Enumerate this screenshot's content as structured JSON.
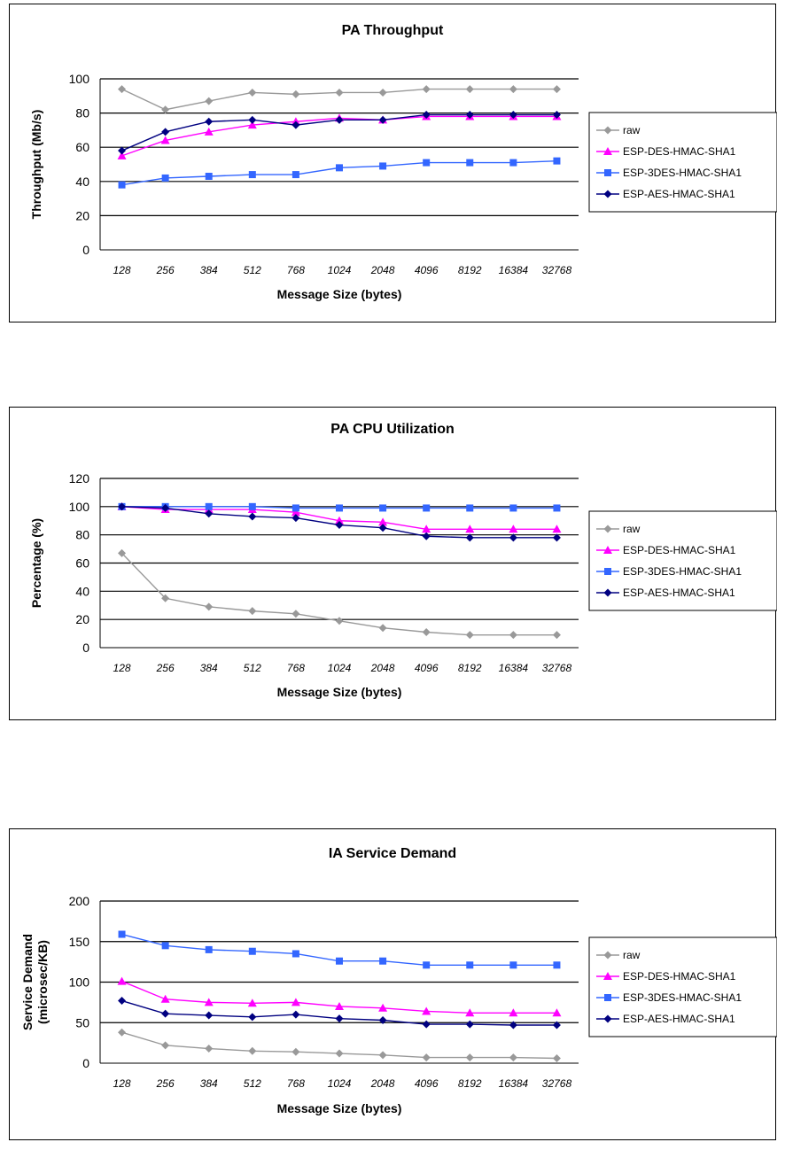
{
  "chart_data": [
    {
      "type": "line",
      "title": "PA Throughput",
      "xlabel": "Message Size (bytes)",
      "ylabel": "Throughput (Mb/s)",
      "categories": [
        "128",
        "256",
        "384",
        "512",
        "768",
        "1024",
        "2048",
        "4096",
        "8192",
        "16384",
        "32768"
      ],
      "ylim": [
        0,
        100
      ],
      "yticks": [
        "0",
        "20",
        "40",
        "60",
        "80",
        "100"
      ],
      "grid": true,
      "legend": "right",
      "series": [
        {
          "name": "raw",
          "color": "#999999",
          "marker": "diamond",
          "values": [
            94,
            82,
            87,
            92,
            91,
            92,
            92,
            94,
            94,
            94,
            94
          ]
        },
        {
          "name": "ESP-DES-HMAC-SHA1",
          "color": "#ff00ff",
          "marker": "triangle",
          "values": [
            55,
            64,
            69,
            73,
            75,
            77,
            76,
            78,
            78,
            78,
            78
          ]
        },
        {
          "name": "ESP-3DES-HMAC-SHA1",
          "color": "#3366ff",
          "marker": "square",
          "values": [
            38,
            42,
            43,
            44,
            44,
            48,
            49,
            51,
            51,
            51,
            52
          ]
        },
        {
          "name": "ESP-AES-HMAC-SHA1",
          "color": "#000080",
          "marker": "diamond",
          "values": [
            58,
            69,
            75,
            76,
            73,
            76,
            76,
            79,
            79,
            79,
            79
          ]
        }
      ]
    },
    {
      "type": "line",
      "title": "PA CPU Utilization",
      "xlabel": "Message Size (bytes)",
      "ylabel": "Percentage (%)",
      "categories": [
        "128",
        "256",
        "384",
        "512",
        "768",
        "1024",
        "2048",
        "4096",
        "8192",
        "16384",
        "32768"
      ],
      "ylim": [
        0,
        120
      ],
      "yticks": [
        "0",
        "20",
        "40",
        "60",
        "80",
        "100",
        "120"
      ],
      "grid": true,
      "legend": "right",
      "series": [
        {
          "name": "raw",
          "color": "#999999",
          "marker": "diamond",
          "values": [
            67,
            35,
            29,
            26,
            24,
            19,
            14,
            11,
            9,
            9,
            9
          ]
        },
        {
          "name": "ESP-DES-HMAC-SHA1",
          "color": "#ff00ff",
          "marker": "triangle",
          "values": [
            100,
            98,
            98,
            98,
            96,
            90,
            89,
            84,
            84,
            84,
            84
          ]
        },
        {
          "name": "ESP-3DES-HMAC-SHA1",
          "color": "#3366ff",
          "marker": "square",
          "values": [
            100,
            100,
            100,
            100,
            99,
            99,
            99,
            99,
            99,
            99,
            99
          ]
        },
        {
          "name": "ESP-AES-HMAC-SHA1",
          "color": "#000080",
          "marker": "diamond",
          "values": [
            100,
            99,
            95,
            93,
            92,
            87,
            85,
            79,
            78,
            78,
            78
          ]
        }
      ]
    },
    {
      "type": "line",
      "title": "IA Service Demand",
      "xlabel": "Message Size (bytes)",
      "ylabel": "Service Demand",
      "ylabel2": "(microsec/KB)",
      "categories": [
        "128",
        "256",
        "384",
        "512",
        "768",
        "1024",
        "2048",
        "4096",
        "8192",
        "16384",
        "32768"
      ],
      "ylim": [
        0,
        200
      ],
      "yticks": [
        "0",
        "50",
        "100",
        "150",
        "200"
      ],
      "grid": true,
      "legend": "right",
      "series": [
        {
          "name": "raw",
          "color": "#999999",
          "marker": "diamond",
          "values": [
            38,
            22,
            18,
            15,
            14,
            12,
            10,
            7,
            7,
            7,
            6
          ]
        },
        {
          "name": "ESP-DES-HMAC-SHA1",
          "color": "#ff00ff",
          "marker": "triangle",
          "values": [
            101,
            79,
            75,
            74,
            75,
            70,
            68,
            64,
            62,
            62,
            62
          ]
        },
        {
          "name": "ESP-3DES-HMAC-SHA1",
          "color": "#3366ff",
          "marker": "square",
          "values": [
            159,
            145,
            140,
            138,
            135,
            126,
            126,
            121,
            121,
            121,
            121
          ]
        },
        {
          "name": "ESP-AES-HMAC-SHA1",
          "color": "#000080",
          "marker": "diamond",
          "values": [
            77,
            61,
            59,
            57,
            60,
            55,
            53,
            48,
            48,
            47,
            47
          ]
        }
      ]
    }
  ]
}
